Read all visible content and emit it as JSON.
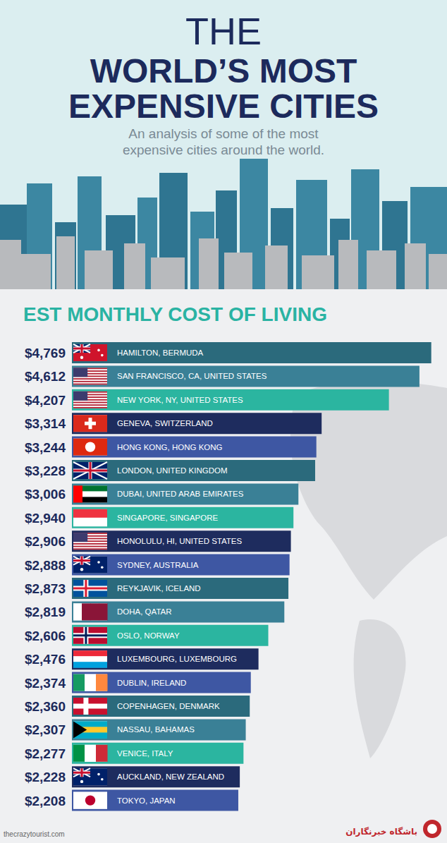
{
  "title_top": "THE",
  "title": "WORLD’S MOST EXPENSIVE CITIES",
  "subtitle": "An analysis of some of the most expensive cities around the world.",
  "source": "thecrazytourist.com",
  "watermark": "باشگاه خبرنگاران",
  "chart_data": {
    "type": "bar",
    "orientation": "horizontal",
    "title": "EST MONTHLY COST OF LIVING",
    "categories": [
      "HAMILTON, BERMUDA",
      "SAN FRANCISCO, CA, UNITED STATES",
      "NEW YORK, NY, UNITED STATES",
      "GENEVA, SWITZERLAND",
      "HONG KONG, HONG KONG",
      "LONDON, UNITED KINGDOM",
      "DUBAI, UNITED ARAB EMIRATES",
      "SINGAPORE, SINGAPORE",
      "HONOLULU, HI, UNITED STATES",
      "SYDNEY, AUSTRALIA",
      "REYKJAVIK, ICELAND",
      "DOHA, QATAR",
      "OSLO, NORWAY",
      "LUXEMBOURG, LUXEMBOURG",
      "DUBLIN, IRELAND",
      "COPENHAGEN, DENMARK",
      "NASSAU, BAHAMAS",
      "VENICE, ITALY",
      "AUCKLAND, NEW ZEALAND",
      "TOKYO, JAPAN"
    ],
    "values": [
      4769,
      4612,
      4207,
      3314,
      3244,
      3228,
      3006,
      2940,
      2906,
      2888,
      2873,
      2819,
      2606,
      2476,
      2374,
      2360,
      2307,
      2277,
      2228,
      2208
    ],
    "value_labels": [
      "$4,769",
      "$4,612",
      "$4,207",
      "$3,314",
      "$3,244",
      "$3,228",
      "$3,006",
      "$2,940",
      "$2,906",
      "$2,888",
      "$2,873",
      "$2,819",
      "$2,606",
      "$2,476",
      "$2,374",
      "$2,360",
      "$2,307",
      "$2,277",
      "$2,228",
      "$2,208"
    ],
    "colors": [
      "#2b6a7c",
      "#3a8096",
      "#2bb5a0",
      "#1e2c5e",
      "#3e57a3",
      "#2b6a7c",
      "#3a8096",
      "#2bb5a0",
      "#1e2c5e",
      "#3e57a3",
      "#2b6a7c",
      "#3a8096",
      "#2bb5a0",
      "#1e2c5e",
      "#3e57a3",
      "#2b6a7c",
      "#3a8096",
      "#2bb5a0",
      "#1e2c5e",
      "#3e57a3"
    ],
    "xlim": [
      0,
      4800
    ],
    "data_labels": true,
    "tick_labels": false,
    "grid": false
  }
}
